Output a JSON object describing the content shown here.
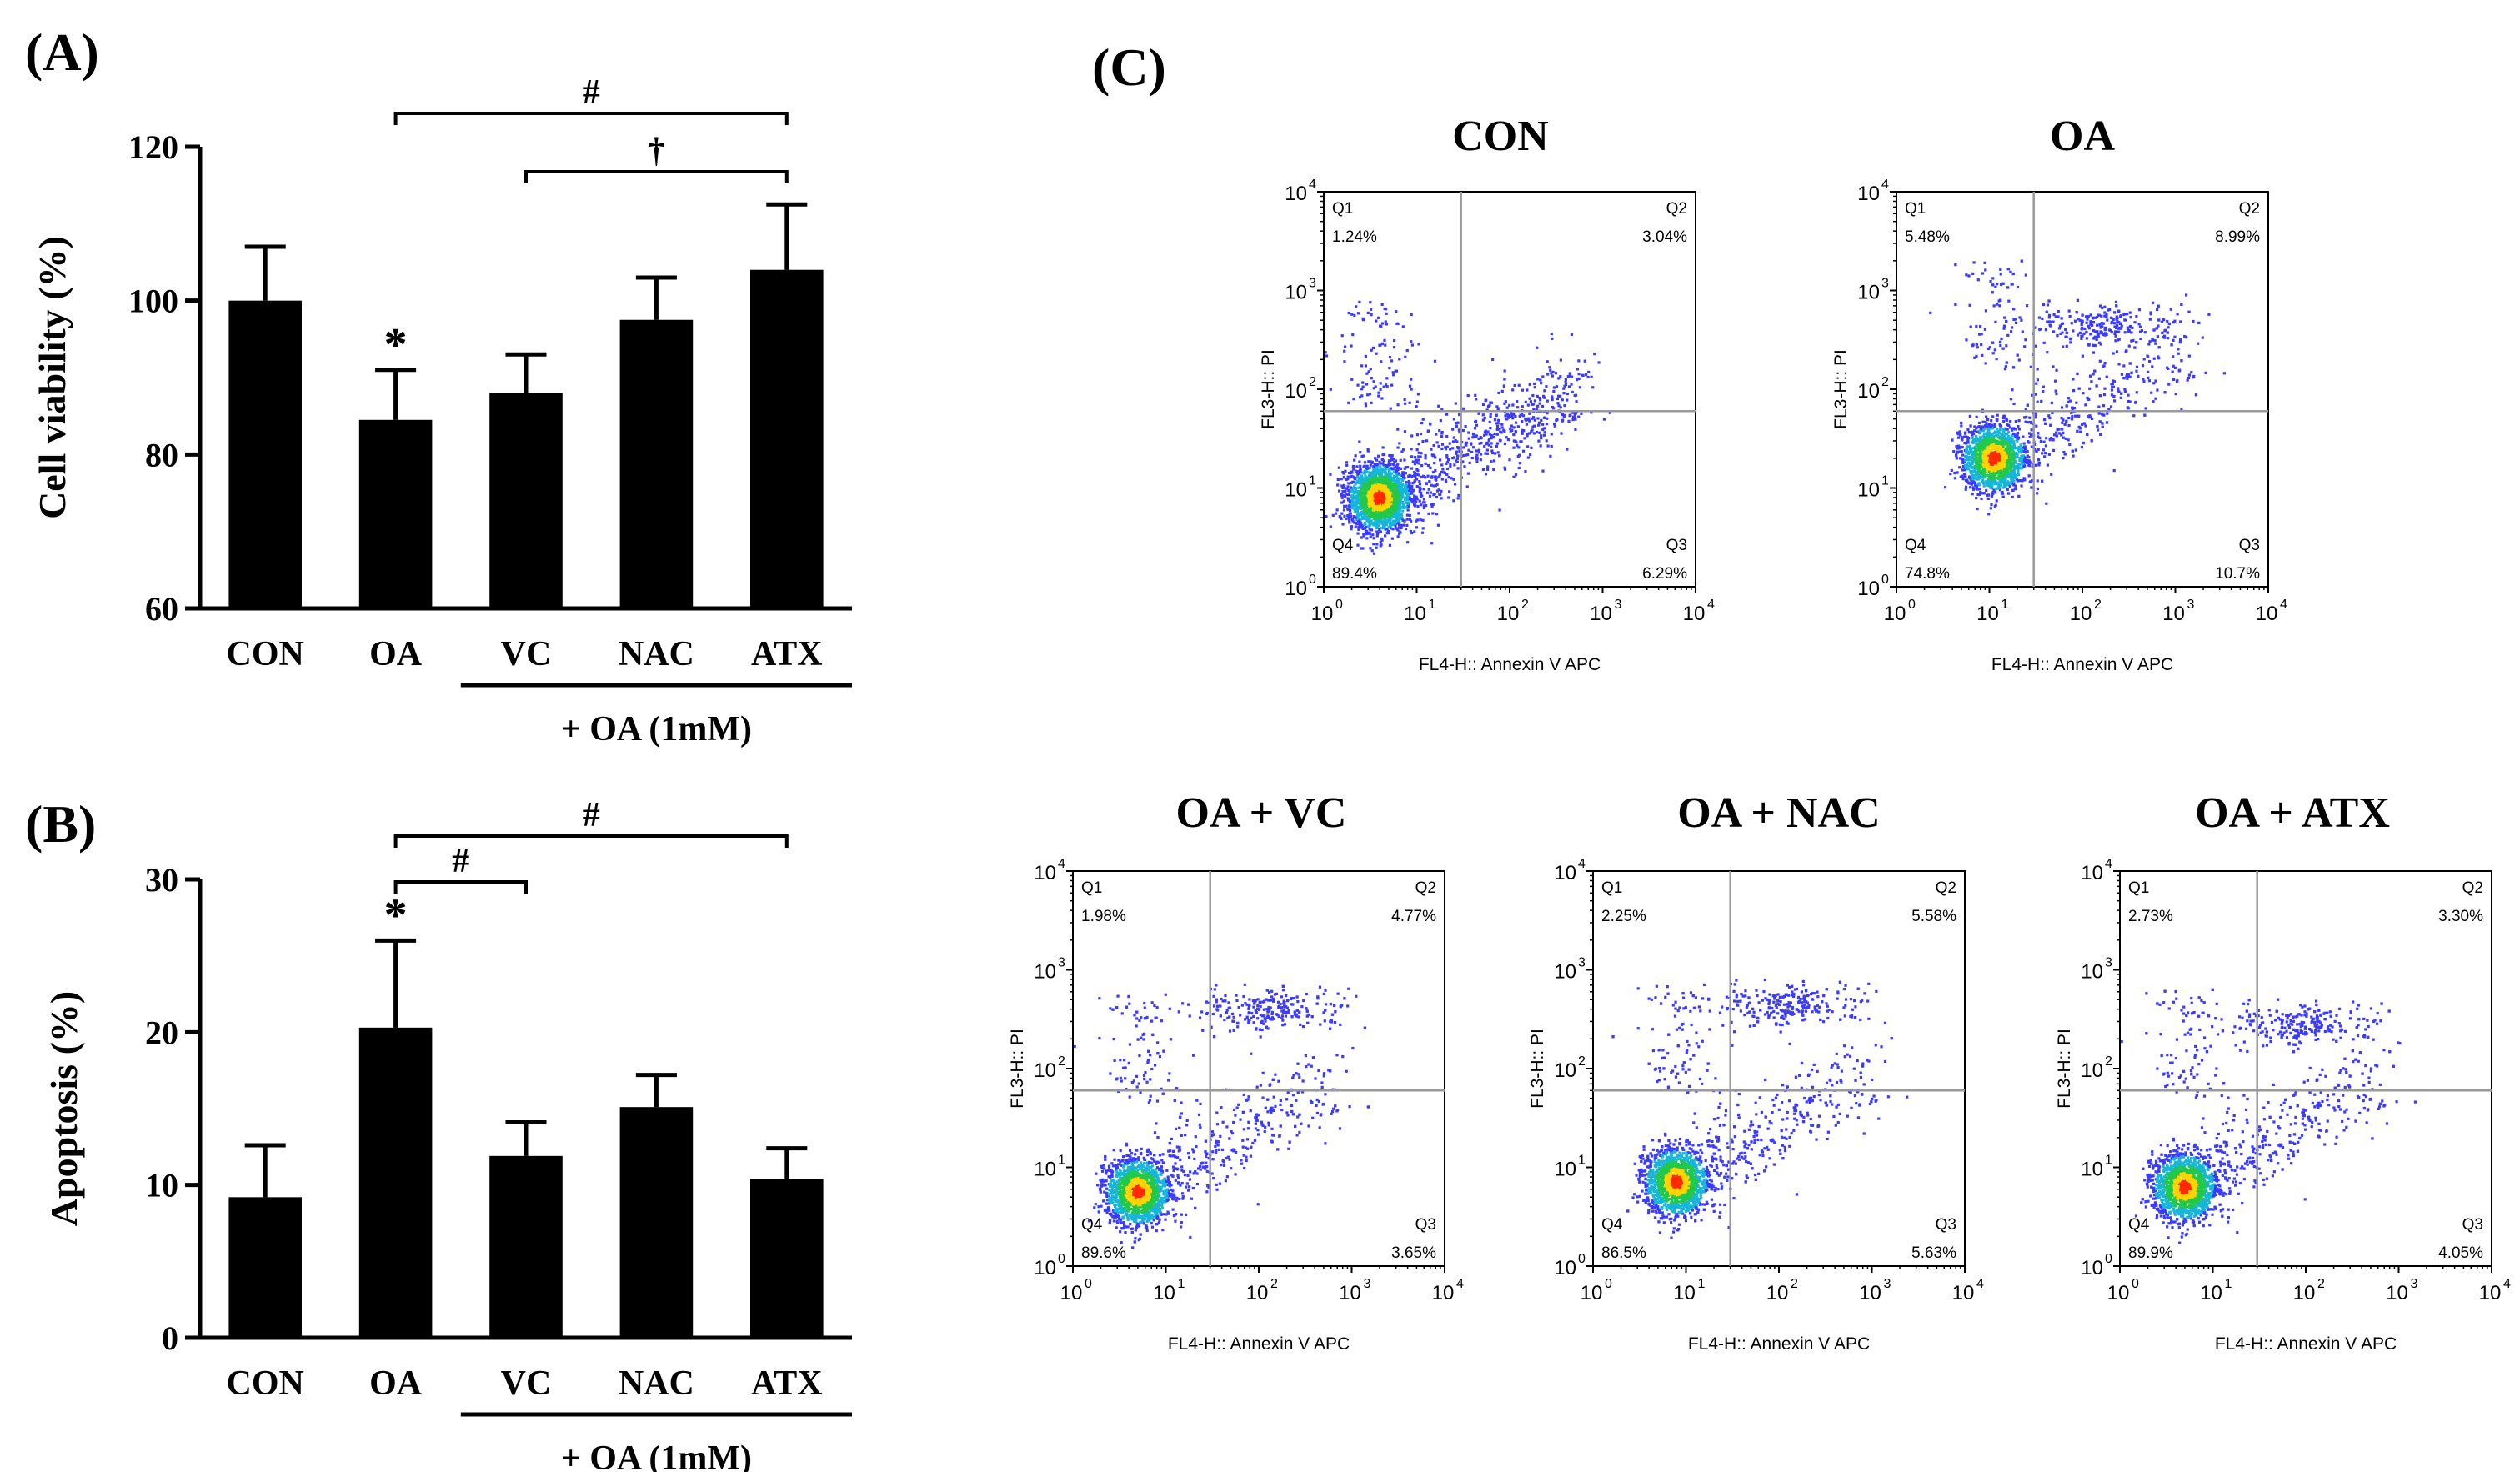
{
  "panels": {
    "A": {
      "label": "(A)"
    },
    "B": {
      "label": "(B)"
    },
    "C": {
      "label": "(C)"
    }
  },
  "chart_data": [
    {
      "id": "A",
      "type": "bar",
      "title": "",
      "ylabel": "Cell viability (%)",
      "xlabel": "",
      "categories": [
        "CON",
        "OA",
        "VC",
        "NAC",
        "ATX"
      ],
      "values": [
        100,
        84.5,
        88,
        97.5,
        104
      ],
      "errors": [
        7,
        6.5,
        5,
        5.5,
        8.5
      ],
      "ylim": [
        60,
        120
      ],
      "yticks": [
        60,
        80,
        100,
        120
      ],
      "group_label": "+ OA (1mM)",
      "group_categories": [
        "VC",
        "NAC",
        "ATX"
      ],
      "color": "#000000",
      "annotations": [
        {
          "symbol": "*",
          "category": "OA"
        },
        {
          "symbol": "#",
          "from": "OA",
          "to": "ATX"
        },
        {
          "symbol": "†",
          "from": "VC",
          "to": "ATX"
        }
      ]
    },
    {
      "id": "B",
      "type": "bar",
      "title": "",
      "ylabel": "Apoptosis (%)",
      "xlabel": "",
      "categories": [
        "CON",
        "OA",
        "VC",
        "NAC",
        "ATX"
      ],
      "values": [
        9.2,
        20.3,
        11.9,
        15.1,
        10.4
      ],
      "errors": [
        3.4,
        5.7,
        2.2,
        2.1,
        2.0
      ],
      "ylim": [
        0,
        30
      ],
      "yticks": [
        0,
        10,
        20,
        30
      ],
      "group_label": "+ OA (1mM)",
      "group_categories": [
        "VC",
        "NAC",
        "ATX"
      ],
      "color": "#000000",
      "annotations": [
        {
          "symbol": "*",
          "category": "OA"
        },
        {
          "symbol": "#",
          "from": "OA",
          "to": "VC"
        },
        {
          "symbol": "#",
          "from": "OA",
          "to": "ATX"
        }
      ]
    },
    {
      "id": "C",
      "type": "scatter",
      "xlabel": "FL4-H:: Annexin V APC",
      "ylabel": "FL3-H:: PI",
      "xscale": "log",
      "yscale": "log",
      "xlim": [
        1,
        10000
      ],
      "ylim": [
        1,
        10000
      ],
      "tick_labels": [
        "0",
        "1",
        "2",
        "3",
        "4"
      ],
      "gate": {
        "x": 30,
        "y": 60
      },
      "plots": [
        {
          "title": "CON",
          "quadrants": {
            "Q1": "1.24%",
            "Q2": "3.04%",
            "Q3": "6.29%",
            "Q4": "89.4%"
          }
        },
        {
          "title": "OA",
          "quadrants": {
            "Q1": "5.48%",
            "Q2": "8.99%",
            "Q3": "10.7%",
            "Q4": "74.8%"
          }
        },
        {
          "title": "OA + VC",
          "quadrants": {
            "Q1": "1.98%",
            "Q2": "4.77%",
            "Q3": "3.65%",
            "Q4": "89.6%"
          }
        },
        {
          "title": "OA + NAC",
          "quadrants": {
            "Q1": "2.25%",
            "Q2": "5.58%",
            "Q3": "5.63%",
            "Q4": "86.5%"
          }
        },
        {
          "title": "OA + ATX",
          "quadrants": {
            "Q1": "2.73%",
            "Q2": "3.30%",
            "Q3": "4.05%",
            "Q4": "89.9%"
          }
        }
      ]
    }
  ]
}
